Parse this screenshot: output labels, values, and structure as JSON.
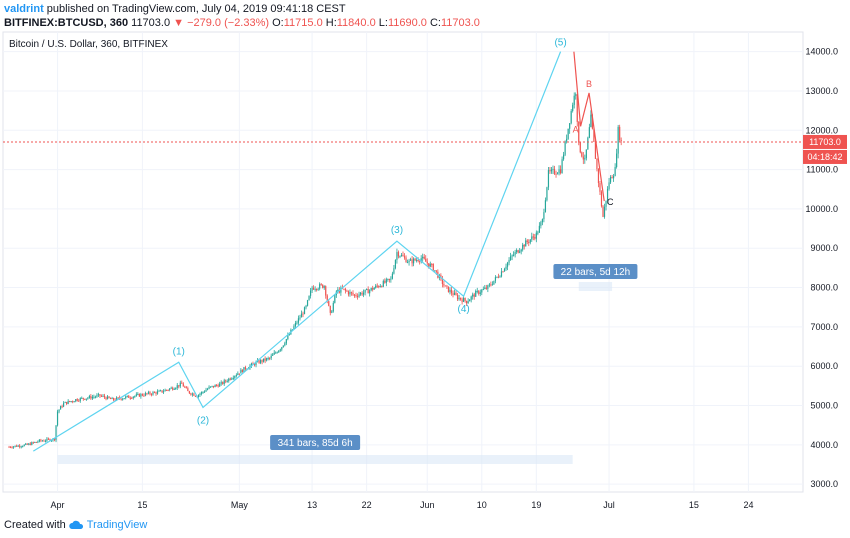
{
  "header": {
    "author": "valdrint",
    "published_text": "published on TradingView.com, July 04, 2019 09:41:18 CEST",
    "symbol": "BITFINEX:BTCUSD, 360",
    "last_price": "11703.0",
    "change": "▼ −279.0 (−2.33%)",
    "o_label": "O:",
    "o_value": "11715.0",
    "h_label": "H:",
    "h_value": "11840.0",
    "l_label": "L:",
    "l_value": "11690.0",
    "c_label": "C:",
    "c_value": "11703.0"
  },
  "footer": {
    "created_with": "Created with",
    "brand": "TradingView"
  },
  "colors": {
    "up": "#26a69a",
    "down": "#ef5350",
    "wave": "#5ed4f0",
    "abc": "#ef5350",
    "price_line": "#ef5350",
    "range_box": "#5b8fc7"
  },
  "chart_data": {
    "type": "candlestick",
    "title": "Bitcoin / U.S. Dollar, 360, BITFINEX",
    "y_axis": {
      "min": 2800,
      "max": 14500,
      "ticks": [
        3000,
        4000,
        5000,
        6000,
        7000,
        8000,
        9000,
        10000,
        11000,
        12000,
        13000,
        14000
      ],
      "tick_labels": [
        "3000.0",
        "4000.0",
        "5000.0",
        "6000.0",
        "7000.0",
        "8000.0",
        "9000.0",
        "10000.0",
        "11000.0",
        "12000.0",
        "13000.0",
        "14000.0"
      ]
    },
    "x_axis": {
      "ticks": [
        {
          "label": "Apr",
          "day": 1
        },
        {
          "label": "15",
          "day": 15
        },
        {
          "label": "May",
          "day": 31
        },
        {
          "label": "13",
          "day": 43
        },
        {
          "label": "22",
          "day": 52
        },
        {
          "label": "Jun",
          "day": 62
        },
        {
          "label": "10",
          "day": 71
        },
        {
          "label": "19",
          "day": 80
        },
        {
          "label": "Jul",
          "day": 92
        },
        {
          "label": "15",
          "day": 106
        },
        {
          "label": "24",
          "day": 115
        }
      ]
    },
    "current_price": {
      "value": 11703.0,
      "label": "11703.0",
      "countdown": "04:18:42"
    },
    "price_path": [
      [
        -7,
        3950
      ],
      [
        -4,
        4000
      ],
      [
        -2,
        4100
      ],
      [
        0.5,
        4150
      ],
      [
        1,
        4850
      ],
      [
        2,
        5050
      ],
      [
        4,
        5150
      ],
      [
        6,
        5200
      ],
      [
        8,
        5250
      ],
      [
        10,
        5150
      ],
      [
        12,
        5200
      ],
      [
        14,
        5250
      ],
      [
        16,
        5300
      ],
      [
        18,
        5350
      ],
      [
        20,
        5450
      ],
      [
        21.5,
        5550
      ],
      [
        22.5,
        5350
      ],
      [
        24,
        5250
      ],
      [
        26,
        5450
      ],
      [
        28,
        5550
      ],
      [
        30,
        5750
      ],
      [
        32,
        5950
      ],
      [
        34,
        6100
      ],
      [
        36,
        6200
      ],
      [
        38,
        6500
      ],
      [
        40,
        7000
      ],
      [
        42,
        7500
      ],
      [
        43,
        8000
      ],
      [
        45,
        8050
      ],
      [
        46,
        7300
      ],
      [
        47,
        7900
      ],
      [
        48,
        7950
      ],
      [
        50,
        7800
      ],
      [
        52,
        7900
      ],
      [
        54,
        8050
      ],
      [
        56,
        8200
      ],
      [
        57,
        8900
      ],
      [
        59,
        8650
      ],
      [
        61,
        8750
      ],
      [
        63,
        8500
      ],
      [
        65,
        8000
      ],
      [
        67,
        7750
      ],
      [
        68.5,
        7650
      ],
      [
        70,
        7850
      ],
      [
        72,
        8000
      ],
      [
        74,
        8350
      ],
      [
        76,
        8800
      ],
      [
        78,
        9100
      ],
      [
        80,
        9350
      ],
      [
        81,
        9700
      ],
      [
        82,
        10900
      ],
      [
        84,
        11000
      ],
      [
        86,
        12700
      ],
      [
        86.5,
        13000
      ],
      [
        87,
        11600
      ],
      [
        88,
        11200
      ],
      [
        89,
        12300
      ],
      [
        90,
        11000
      ],
      [
        91,
        9800
      ],
      [
        92,
        10700
      ],
      [
        93,
        11000
      ],
      [
        93.5,
        12000
      ],
      [
        94,
        11703
      ]
    ],
    "wave_count": [
      {
        "label": "",
        "day": -3,
        "price": 3840
      },
      {
        "label": "(1)",
        "day": 21,
        "price": 6100
      },
      {
        "label": "(2)",
        "day": 25,
        "price": 4950
      },
      {
        "label": "(3)",
        "day": 57,
        "price": 9180
      },
      {
        "label": "(4)",
        "day": 68,
        "price": 7780
      },
      {
        "label": "(5)",
        "day": 84,
        "price": 14000
      }
    ],
    "correction": [
      {
        "label": "",
        "day": 86.2,
        "price": 14000
      },
      {
        "label": "A",
        "day": 87.3,
        "price": 12100
      },
      {
        "label": "B",
        "day": 88.7,
        "price": 12950
      },
      {
        "label": "C",
        "day": 91.2,
        "price": 10200
      }
    ],
    "ranges": [
      {
        "label": "341 bars, 85d 6h",
        "start_day": 1,
        "end_day": 86
      },
      {
        "label": "22 bars, 5d 12h",
        "start_day": 87,
        "end_day": 92.5
      }
    ]
  }
}
